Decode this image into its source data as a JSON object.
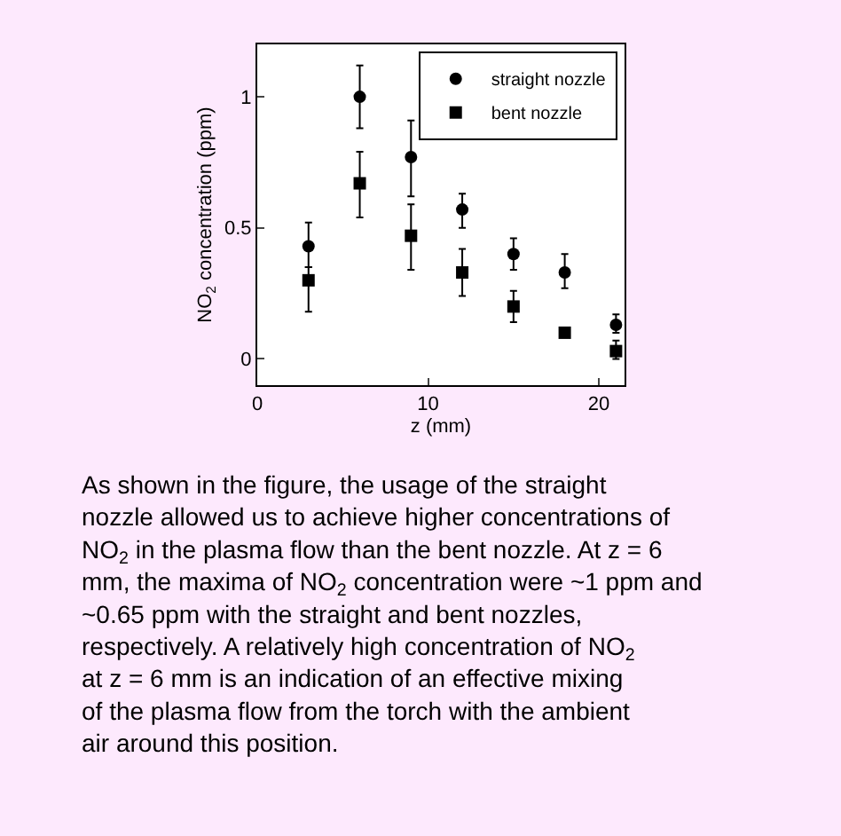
{
  "chart_data": {
    "type": "scatter",
    "xlabel": "z (mm)",
    "ylabel": "NO$_{2}$ concentration (ppm)",
    "x": [
      3,
      6,
      9,
      12,
      15,
      18,
      21
    ],
    "series": [
      {
        "name": "straight nozzle",
        "color": "#000000",
        "marker": "circle",
        "values": [
          0.43,
          1.0,
          0.77,
          0.57,
          0.4,
          0.33,
          0.13
        ],
        "errors": [
          [
            0.35,
            0.52
          ],
          [
            0.88,
            1.12
          ],
          [
            0.62,
            0.91
          ],
          [
            0.5,
            0.63
          ],
          [
            0.34,
            0.46
          ],
          [
            0.27,
            0.4
          ],
          [
            0.1,
            0.17
          ]
        ]
      },
      {
        "name": "bent nozzle",
        "color": "#000000",
        "marker": "square",
        "values": [
          0.3,
          0.67,
          0.47,
          0.33,
          0.2,
          0.1,
          0.03
        ],
        "errors": [
          [
            0.18,
            0.35
          ],
          [
            0.54,
            0.79
          ],
          [
            0.34,
            0.59
          ],
          [
            0.24,
            0.42
          ],
          [
            0.14,
            0.26
          ],
          null,
          [
            0.0,
            0.07
          ]
        ]
      }
    ],
    "xlim": [
      0,
      21.5
    ],
    "ylim": [
      -0.1,
      1.2
    ],
    "xticks": [
      0,
      10,
      20
    ],
    "yticks": [
      0,
      0.5,
      1
    ],
    "legend": "top right",
    "annotations": [
      "As shown in the figure, the usage of the straight nozzle allowed us to achieve higher concentrations of NO$_{2}$ in the plasma flow than the bent nozzle. At z = 6 mm, the maxima of NO$_{2}$ concentration were ~1 ppm and ~0.65 ppm with the straight and bent nozzles, respectively. A relatively high concentration of NO$_{2}$ at z = 6 mm is an indication of an effective mixing of the plasma flow from the torch with the ambient air around this position."
    ]
  }
}
